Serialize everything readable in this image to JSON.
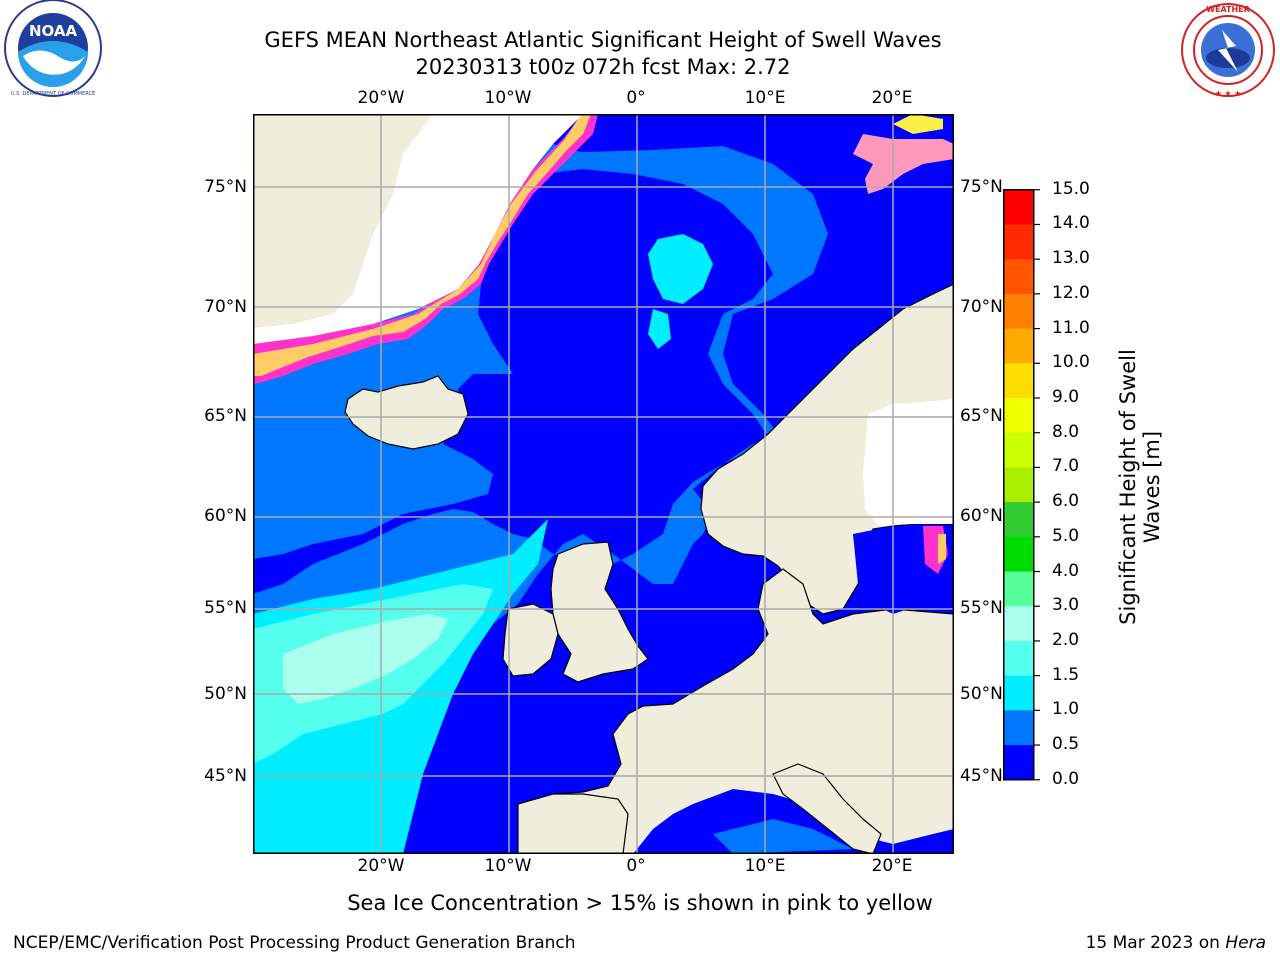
{
  "header": {
    "title_line1": "GEFS MEAN Northeast Atlantic Significant Height of Swell Waves",
    "title_line2": "20230313 t00z 072h fcst   Max: 2.72"
  },
  "logos": {
    "left": {
      "name": "NOAA",
      "text": "NOAA",
      "ring_text": "NATIONAL OCEANIC AND ATMOSPHERIC ADMINISTRATION · U.S. DEPARTMENT OF COMMERCE"
    },
    "right": {
      "name": "National Weather Service",
      "ring_text": "NATIONAL WEATHER SERVICE"
    }
  },
  "map": {
    "lon_labels_top": [
      "20°W",
      "10°W",
      "0°",
      "10°E",
      "20°E"
    ],
    "lon_labels_bottom": [
      "20°W",
      "10°W",
      "0°",
      "10°E",
      "20°E"
    ],
    "lat_labels_left": [
      "75°N",
      "70°N",
      "65°N",
      "60°N",
      "55°N",
      "50°N",
      "45°N"
    ],
    "lat_labels_right": [
      "75°N",
      "70°N",
      "65°N",
      "60°N",
      "55°N",
      "50°N",
      "45°N"
    ],
    "colors": {
      "land": "#efeedd",
      "ice_edge": [
        "#ff33cc",
        "#ff99bb",
        "#ffcc66",
        "#ffee44"
      ],
      "grid": "#aaaaaa"
    }
  },
  "colorbar": {
    "title": "Significant Height of Swell Waves [m]",
    "title_line1": "Significant Height of Swell",
    "title_line2": "Waves [m]",
    "ticks": [
      "15.0",
      "14.0",
      "13.0",
      "12.0",
      "11.0",
      "10.0",
      "9.0",
      "8.0",
      "7.0",
      "6.0",
      "5.0",
      "4.0",
      "3.0",
      "2.0",
      "1.5",
      "1.0",
      "0.5",
      "0.0"
    ],
    "levels_top_to_bottom": [
      {
        "range": "14.0-15.0",
        "color": "#ff0000"
      },
      {
        "range": "13.0-14.0",
        "color": "#ff2a00"
      },
      {
        "range": "12.0-13.0",
        "color": "#ff5500"
      },
      {
        "range": "11.0-12.0",
        "color": "#ff8000"
      },
      {
        "range": "10.0-11.0",
        "color": "#ffaa00"
      },
      {
        "range": "9.0-10.0",
        "color": "#ffdd00"
      },
      {
        "range": "8.0-9.0",
        "color": "#eeff00"
      },
      {
        "range": "7.0-8.0",
        "color": "#ccff00"
      },
      {
        "range": "6.0-7.0",
        "color": "#aaee00"
      },
      {
        "range": "5.0-6.0",
        "color": "#33cc33"
      },
      {
        "range": "4.0-5.0",
        "color": "#00dd00"
      },
      {
        "range": "3.0-4.0",
        "color": "#55ff99"
      },
      {
        "range": "2.0-3.0",
        "color": "#aaffee"
      },
      {
        "range": "1.5-2.0",
        "color": "#55ffee"
      },
      {
        "range": "1.0-1.5",
        "color": "#00eeff"
      },
      {
        "range": "0.5-1.0",
        "color": "#0077ff"
      },
      {
        "range": "0.0-0.5",
        "color": "#0000ff"
      }
    ]
  },
  "footnote": "Sea Ice Concentration > 15% is shown in pink to yellow",
  "credits": {
    "left": "NCEP/EMC/Verification Post Processing Product Generation Branch",
    "right_date": "15 Mar 2023 on ",
    "right_machine": "Hera"
  }
}
